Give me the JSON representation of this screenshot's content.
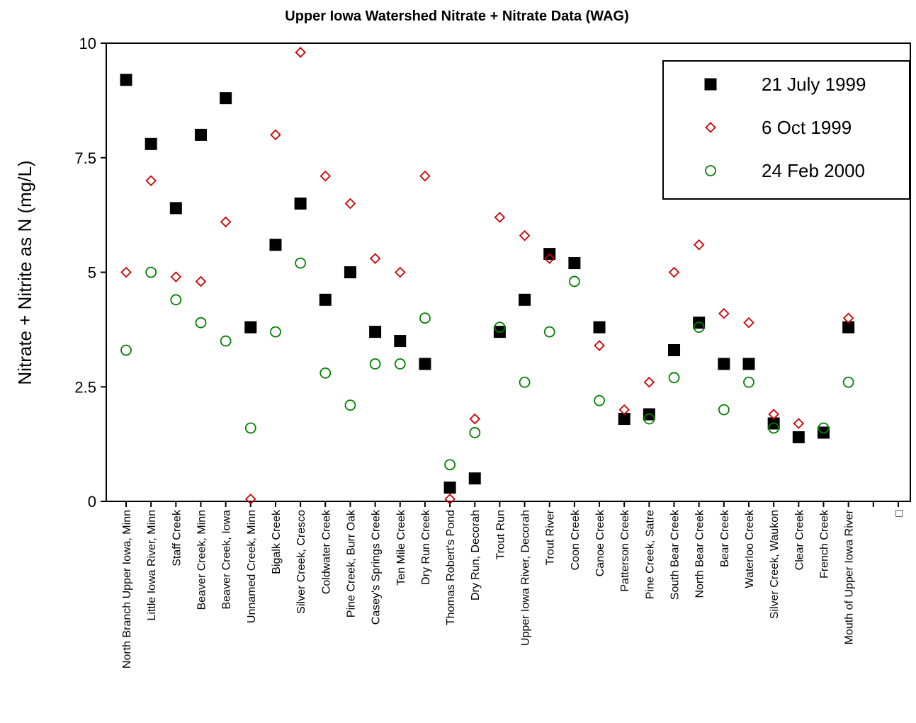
{
  "chart_data": {
    "type": "scatter",
    "title": "Upper Iowa Watershed Nitrate + Nitrate Data (WAG)",
    "y_label": "Nitrate + Nitrite as N (mg/L)",
    "categories": [
      "North Branch Upper Iowa, Minn",
      "Little Iowa River, Minn",
      "Staff Creek",
      "Beaver Creek, Minn",
      "Beaver Creek, Iowa",
      "Unnamed Creek, Minn",
      "Bigalk Creek",
      "Silver Creek, Cresco",
      "Coldwater Creek",
      "Pine Creek, Burr Oak",
      "Casey's Springs Creek",
      "Ten Mile Creek",
      "Dry Run Creek",
      "Thomas Robert's Pond",
      "Dry Run, Decorah",
      "Trout Run",
      "Upper Iowa River, Decorah",
      "Trout River",
      "Coon Creek",
      "Canoe Creek",
      "Patterson Creek",
      "Pine Creek, Satre",
      "South Bear Creek",
      "North Bear Creek",
      "Bear Creek",
      "Waterloo Creek",
      "Silver Creek, Waukon",
      "Clear Creek",
      "French Creek",
      "Mouth of Upper Iowa River",
      null,
      "□"
    ],
    "series": [
      {
        "name": "21 July 1999",
        "color": "#000000",
        "marker": "square",
        "values": [
          9.2,
          7.8,
          6.4,
          8.0,
          8.8,
          3.8,
          5.6,
          6.5,
          4.4,
          5.0,
          3.7,
          3.5,
          3.0,
          0.3,
          0.5,
          3.7,
          4.4,
          5.4,
          5.2,
          3.8,
          1.8,
          1.9,
          3.3,
          3.9,
          3.0,
          3.0,
          1.7,
          1.4,
          1.5,
          3.8,
          null,
          null
        ]
      },
      {
        "name": "6 Oct 1999",
        "color": "#cc0000",
        "marker": "diamond",
        "values": [
          5.0,
          7.0,
          4.9,
          4.8,
          6.1,
          0.05,
          8.0,
          9.8,
          7.1,
          6.5,
          5.3,
          5.0,
          7.1,
          0.05,
          1.8,
          6.2,
          5.8,
          5.3,
          null,
          3.4,
          2.0,
          2.6,
          5.0,
          5.6,
          4.1,
          3.9,
          1.9,
          1.7,
          null,
          4.0,
          null,
          null
        ]
      },
      {
        "name": "24 Feb 2000",
        "color": "#008000",
        "marker": "circle",
        "values": [
          3.3,
          5.0,
          4.4,
          3.9,
          3.5,
          1.6,
          3.7,
          5.2,
          2.8,
          2.1,
          3.0,
          3.0,
          4.0,
          0.8,
          1.5,
          3.8,
          2.6,
          3.7,
          4.8,
          2.2,
          null,
          1.8,
          2.7,
          3.8,
          2.0,
          2.6,
          1.6,
          null,
          1.6,
          2.6,
          null,
          null
        ]
      }
    ],
    "ylim": [
      0,
      10
    ],
    "yticks": [
      0,
      2.5,
      5,
      7.5,
      10
    ],
    "legend": "top-right"
  }
}
